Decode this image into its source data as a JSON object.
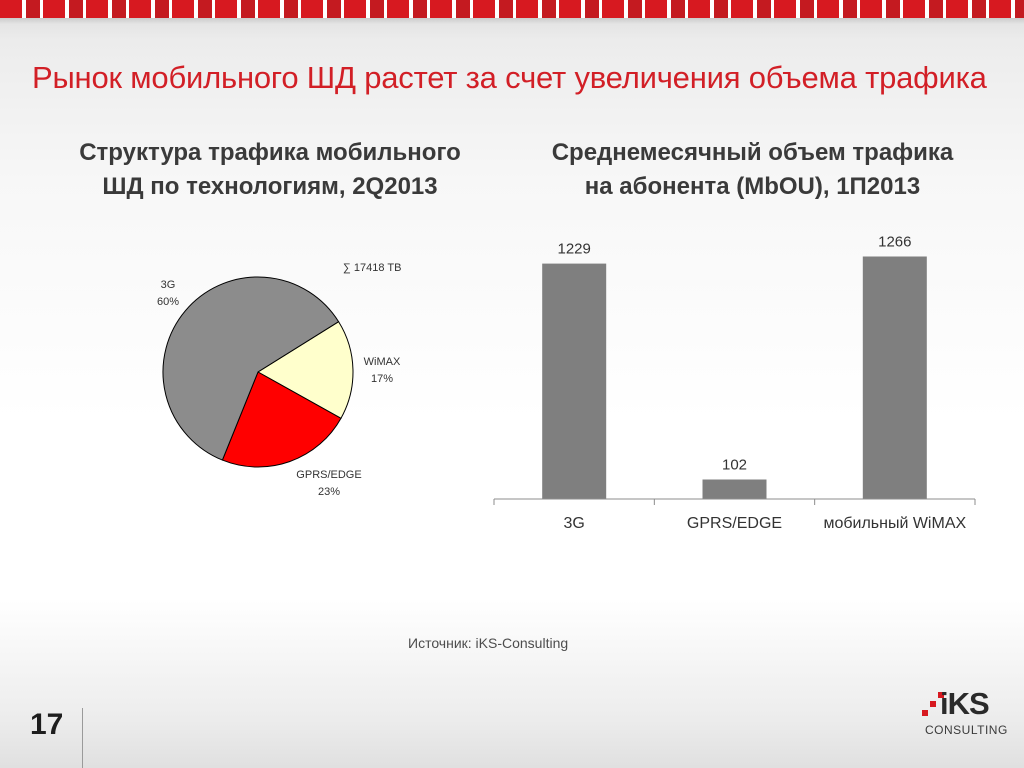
{
  "slide": {
    "title": "Рынок мобильного ШД растет за счет увеличения объема трафика",
    "source": "Источник: iKS-Consulting",
    "page_number": "17"
  },
  "logo": {
    "text": "iKS",
    "subtext": "CONSULTING"
  },
  "colors": {
    "title": "#d21f26",
    "slice_3g": "#8c8c8c",
    "slice_wimax": "#ffffcc",
    "slice_gprs": "#ff0000",
    "bar": "#7f7f7f"
  },
  "chart_data": [
    {
      "type": "pie",
      "title_lines": [
        "Структура трафика мобильного",
        "ШД по технологиям, 2Q2013"
      ],
      "total_label": "∑ 17418 TB",
      "slices": [
        {
          "name": "3G",
          "percent_label": "60%",
          "value": 60
        },
        {
          "name": "WiMAX",
          "percent_label": "17%",
          "value": 17
        },
        {
          "name": "GPRS/EDGE",
          "percent_label": "23%",
          "value": 23
        }
      ]
    },
    {
      "type": "bar",
      "title_lines": [
        "Среднемесячный объем трафика",
        "на абонента (MbOU), 1П2013"
      ],
      "categories": [
        "3G",
        "GPRS/EDGE",
        "мобильный WiMAX"
      ],
      "values": [
        1229,
        102,
        1266
      ],
      "value_labels": [
        "1229",
        "102",
        "1266"
      ],
      "ylim": [
        0,
        1300
      ]
    }
  ]
}
